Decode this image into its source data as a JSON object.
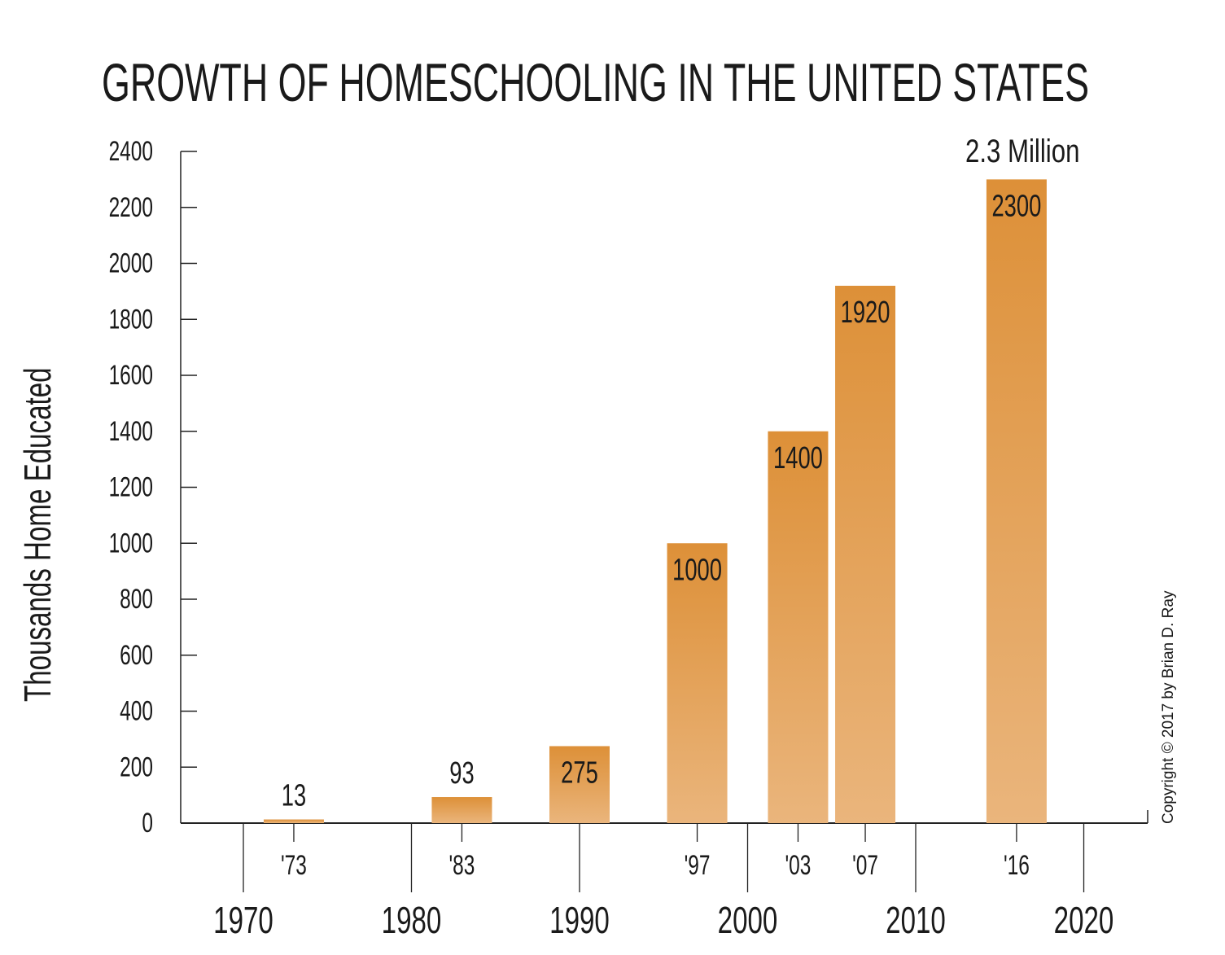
{
  "chart_data": {
    "type": "bar",
    "title": "GROWTH OF HOMESCHOOLING IN THE UNITED STATES",
    "ylabel": "Thousands Home Educated",
    "xlabel": "",
    "ylim": [
      0,
      2400
    ],
    "yticks": [
      "0",
      "200",
      "400",
      "600",
      "800",
      "1000",
      "1200",
      "1400",
      "1600",
      "1800",
      "2000",
      "2200",
      "2400"
    ],
    "xlim": [
      1967,
      2024
    ],
    "decade_ticks": [
      "1970",
      "1980",
      "1990",
      "2000",
      "2010",
      "2020"
    ],
    "grid": false,
    "bars": [
      {
        "year": 1973,
        "year_label": "'73",
        "value": 13,
        "value_label": "13"
      },
      {
        "year": 1983,
        "year_label": "'83",
        "value": 93,
        "value_label": "93"
      },
      {
        "year": 1990,
        "year_label": "",
        "value": 275,
        "value_label": "275"
      },
      {
        "year": 1997,
        "year_label": "'97",
        "value": 1000,
        "value_label": "1000"
      },
      {
        "year": 2003,
        "year_label": "'03",
        "value": 1400,
        "value_label": "1400"
      },
      {
        "year": 2007,
        "year_label": "'07",
        "value": 1920,
        "value_label": "1920"
      },
      {
        "year": 2016,
        "year_label": "'16",
        "value": 2300,
        "value_label": "2300"
      }
    ],
    "annotation": "2.3 Million",
    "copyright": "Copyright © 2017 by Brian D. Ray",
    "colors": {
      "bar_top": "#dd9038",
      "bar_bottom": "#eab57c",
      "axis": "#222222"
    }
  }
}
